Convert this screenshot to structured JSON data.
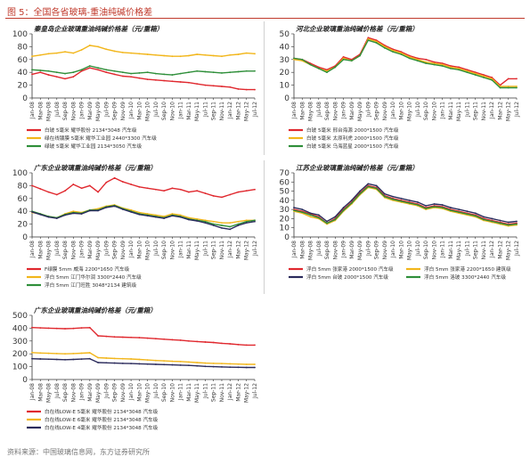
{
  "page": {
    "figure_title": "图 5：全国各省玻璃-重油纯碱价格差",
    "source": "资料来源：中国玻璃信息网，东方证券研究所"
  },
  "chart_data": [
    {
      "id": "p1",
      "type": "line",
      "title": "秦皇岛企业玻璃重油纯碱价格差（元/重箱）",
      "ylim": [
        0,
        100
      ],
      "yticks": [
        0,
        20,
        40,
        60,
        80,
        100
      ],
      "grid": false,
      "legend": "bottom",
      "x": [
        "Jan-08",
        "Mar-08",
        "May-08",
        "Jul-08",
        "Sep-08",
        "Nov-08",
        "Jan-09",
        "Mar-09",
        "May-09",
        "Jul-09",
        "Sep-09",
        "Nov-09",
        "Jan-10",
        "Mar-10",
        "May-10",
        "Jul-10",
        "Sep-10",
        "Nov-10",
        "Jan-11",
        "Mar-11",
        "May-11",
        "Jul-11",
        "Sep-11",
        "Nov-11",
        "Jan-12",
        "Mar-12",
        "May-12",
        "Jul-12"
      ],
      "series": [
        {
          "name": "白玻  5毫米  耀华股份  2134*3048  汽车级",
          "color": "#e0282e",
          "values": [
            37,
            40,
            36,
            33,
            30,
            33,
            42,
            47,
            44,
            40,
            37,
            34,
            33,
            31,
            29,
            28,
            27,
            26,
            25,
            24,
            22,
            20,
            19,
            18,
            17,
            14,
            13,
            13
          ]
        },
        {
          "name": "绿在线镀膜  5毫米  耀华工业园  2440*3300  汽车级",
          "color": "#f2b61b",
          "values": [
            65,
            67,
            69,
            70,
            72,
            70,
            75,
            82,
            80,
            76,
            73,
            71,
            70,
            69,
            68,
            67,
            66,
            65,
            65,
            66,
            68,
            67,
            66,
            65,
            67,
            68,
            70,
            69
          ]
        },
        {
          "name": "绿玻  5毫米  耀华工业园  2134*3050  汽车级",
          "color": "#2f8f3a",
          "values": [
            44,
            43,
            42,
            40,
            38,
            40,
            44,
            50,
            47,
            44,
            42,
            40,
            38,
            39,
            40,
            38,
            37,
            36,
            38,
            40,
            42,
            41,
            40,
            39,
            40,
            41,
            42,
            42
          ]
        }
      ]
    },
    {
      "id": "p2",
      "type": "line",
      "title": "河北企业玻璃重油纯碱价格差（元/重箱）",
      "ylim": [
        0,
        50
      ],
      "yticks": [
        0,
        10,
        20,
        30,
        40,
        50
      ],
      "grid": false,
      "legend": "bottom",
      "x": [
        "Jan-08",
        "Mar-08",
        "May-08",
        "Jul-08",
        "Sep-08",
        "Nov-08",
        "Jan-09",
        "Mar-09",
        "May-09",
        "Jul-09",
        "Sep-09",
        "Nov-09",
        "Jan-10",
        "Mar-10",
        "May-10",
        "Jul-10",
        "Sep-10",
        "Nov-10",
        "Jan-11",
        "Mar-11",
        "May-11",
        "Jul-11",
        "Sep-11",
        "Nov-11",
        "Jan-12",
        "Mar-12",
        "May-12",
        "Jul-12"
      ],
      "series": [
        {
          "name": "白玻  5毫米  邢台海源  2000*1500  汽车级",
          "color": "#e0282e",
          "values": [
            31,
            30,
            27,
            24,
            22,
            25,
            32,
            30,
            34,
            47,
            45,
            41,
            38,
            36,
            33,
            31,
            30,
            28,
            27,
            25,
            24,
            22,
            20,
            18,
            16,
            10,
            15,
            15
          ]
        },
        {
          "name": "白玻  5毫米  太原利虎  2000*1500  汽车级",
          "color": "#f2b61b",
          "values": [
            30,
            29,
            26,
            23,
            21,
            24,
            31,
            29,
            33,
            46,
            44,
            40,
            37,
            35,
            32,
            30,
            28,
            27,
            26,
            24,
            23,
            21,
            19,
            17,
            15,
            9,
            9,
            9
          ]
        },
        {
          "name": "白玻  5毫米  乌海蓝星  2000*1500  汽车级",
          "color": "#2f8f3a",
          "values": [
            31,
            30,
            26,
            23,
            20,
            24,
            30,
            29,
            33,
            45,
            43,
            39,
            36,
            34,
            31,
            29,
            27,
            26,
            25,
            23,
            22,
            20,
            18,
            16,
            14,
            8,
            8,
            8
          ]
        }
      ]
    },
    {
      "id": "p3",
      "type": "line",
      "title": "广东企业玻璃重油纯碱价格差（元/重箱）",
      "ylim": [
        0,
        100
      ],
      "yticks": [
        0,
        20,
        40,
        60,
        80,
        100
      ],
      "grid": false,
      "legend": "bottom",
      "x": [
        "Jan-08",
        "Mar-08",
        "May-08",
        "Jul-08",
        "Sep-08",
        "Nov-08",
        "Jan-09",
        "Mar-09",
        "May-09",
        "Jul-09",
        "Sep-09",
        "Nov-09",
        "Jan-10",
        "Mar-10",
        "May-10",
        "Jul-10",
        "Sep-10",
        "Nov-10",
        "Jan-11",
        "Mar-11",
        "May-11",
        "Jul-11",
        "Sep-11",
        "Nov-11",
        "Jan-12",
        "Mar-12",
        "May-12",
        "Jul-12"
      ],
      "series": [
        {
          "name": "F绿膜  5mm  威海  2200*1650  汽车级",
          "color": "#e0282e",
          "values": [
            80,
            75,
            70,
            66,
            72,
            82,
            76,
            80,
            70,
            85,
            92,
            86,
            82,
            78,
            76,
            74,
            72,
            76,
            74,
            70,
            72,
            68,
            64,
            62,
            66,
            70,
            72,
            74
          ]
        },
        {
          "name": "浮白  5mm  江门华尔润  3300*2440  汽车级",
          "color": "#f2b61b",
          "values": [
            38,
            36,
            32,
            30,
            36,
            40,
            38,
            42,
            44,
            48,
            50,
            45,
            42,
            38,
            36,
            34,
            32,
            36,
            34,
            30,
            28,
            26,
            24,
            22,
            22,
            24,
            26,
            26
          ]
        },
        {
          "name": "浮白  5mm  江门旺胜  3048*2134  建筑级",
          "color": "#2f8f3a",
          "values": [
            40,
            36,
            32,
            30,
            35,
            38,
            37,
            42,
            42,
            47,
            49,
            44,
            40,
            36,
            34,
            32,
            30,
            34,
            32,
            28,
            26,
            24,
            20,
            18,
            16,
            20,
            24,
            26
          ]
        },
        {
          "name": "",
          "color": "#2b2b5c",
          "values": [
            39,
            35,
            31,
            29,
            34,
            37,
            36,
            41,
            41,
            46,
            48,
            43,
            39,
            35,
            33,
            31,
            29,
            33,
            31,
            27,
            25,
            22,
            18,
            14,
            12,
            18,
            22,
            24
          ]
        }
      ]
    },
    {
      "id": "p4",
      "type": "line",
      "title": "江苏企业玻璃重油纯碱价格差（元/重箱）",
      "ylim": [
        0,
        70
      ],
      "yticks": [
        0,
        10,
        20,
        30,
        40,
        50,
        60,
        70
      ],
      "grid": false,
      "legend": "bottom",
      "x": [
        "Jan-08",
        "Mar-08",
        "May-08",
        "Jul-08",
        "Sep-08",
        "Nov-08",
        "Jan-09",
        "Mar-09",
        "May-09",
        "Jul-09",
        "Sep-09",
        "Nov-09",
        "Jan-10",
        "Mar-10",
        "May-10",
        "Jul-10",
        "Sep-10",
        "Nov-10",
        "Jan-11",
        "Mar-11",
        "May-11",
        "Jul-11",
        "Sep-11",
        "Nov-11",
        "Jan-12",
        "Mar-12",
        "May-12",
        "Jul-12"
      ],
      "series": [
        {
          "name": "浮白  5mm  张家港  2000*1500  汽车级",
          "color": "#e0282e",
          "values": [
            30,
            28,
            25,
            22,
            15,
            20,
            30,
            38,
            48,
            56,
            54,
            45,
            42,
            40,
            38,
            36,
            32,
            34,
            33,
            30,
            28,
            26,
            24,
            20,
            18,
            16,
            14,
            15
          ]
        },
        {
          "name": "浮白  5mm  张家港  2200*1650  建筑级",
          "color": "#f2b61b",
          "values": [
            28,
            26,
            22,
            20,
            14,
            18,
            28,
            36,
            46,
            54,
            52,
            43,
            40,
            38,
            36,
            34,
            30,
            32,
            31,
            28,
            26,
            24,
            22,
            18,
            16,
            14,
            12,
            13
          ]
        },
        {
          "name": "浮白  5mm  台玻  2000*1500  汽车级",
          "color": "#2b2b5c",
          "values": [
            32,
            30,
            26,
            24,
            17,
            22,
            32,
            40,
            50,
            58,
            56,
            47,
            44,
            42,
            40,
            38,
            34,
            36,
            35,
            32,
            30,
            28,
            26,
            22,
            20,
            18,
            16,
            17
          ]
        },
        {
          "name": "浮白  5mm  洛玻  3300*2440  汽车级",
          "color": "#2f8f3a",
          "values": [
            29,
            27,
            24,
            21,
            15,
            19,
            29,
            37,
            47,
            55,
            53,
            44,
            41,
            39,
            37,
            35,
            31,
            33,
            32,
            29,
            27,
            25,
            23,
            19,
            17,
            15,
            13,
            14
          ]
        }
      ]
    },
    {
      "id": "p5",
      "type": "line",
      "title": "广东企业玻璃重油纯碱价格差（元/重箱）",
      "ylim": [
        0,
        500
      ],
      "yticks": [
        0,
        100,
        200,
        300,
        400,
        500
      ],
      "grid": false,
      "legend": "bottom",
      "x": [
        "Jan-08",
        "Mar-08",
        "May-08",
        "Jul-08",
        "Sep-08",
        "Nov-08",
        "Jan-09",
        "Mar-09",
        "May-09",
        "Jul-09",
        "Sep-09",
        "Nov-09",
        "Jan-10",
        "Mar-10",
        "May-10",
        "Jul-10",
        "Sep-10",
        "Nov-10",
        "Jan-11",
        "Mar-11",
        "May-11",
        "Jul-11",
        "Sep-11",
        "Nov-11",
        "Jan-12",
        "Mar-12",
        "May-12",
        "Jul-12"
      ],
      "series": [
        {
          "name": "白在线LOW-E  5毫米  耀华股份  2134*3048  汽车级",
          "color": "#e0282e",
          "values": [
            405,
            402,
            400,
            398,
            396,
            398,
            402,
            404,
            340,
            336,
            332,
            330,
            328,
            326,
            322,
            318,
            314,
            310,
            306,
            300,
            296,
            292,
            288,
            282,
            278,
            272,
            268,
            268
          ]
        },
        {
          "name": "白在线LOW-E  6毫米  耀华股份  2134*3048  汽车级",
          "color": "#f2b61b",
          "values": [
            210,
            206,
            204,
            202,
            200,
            202,
            205,
            208,
            170,
            167,
            164,
            162,
            160,
            156,
            152,
            148,
            145,
            142,
            140,
            136,
            132,
            128,
            126,
            124,
            122,
            120,
            118,
            118
          ]
        },
        {
          "name": "白在线LOW-E  4毫米  耀华股份  2134*3048  汽车级",
          "color": "#2b2b5c",
          "values": [
            162,
            160,
            158,
            156,
            154,
            156,
            159,
            162,
            132,
            130,
            128,
            126,
            124,
            122,
            120,
            118,
            116,
            114,
            112,
            110,
            106,
            102,
            100,
            98,
            96,
            95,
            94,
            94
          ]
        }
      ]
    }
  ]
}
